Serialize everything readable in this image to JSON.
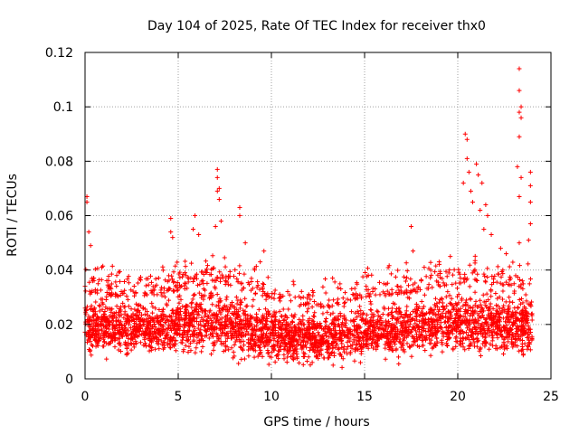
{
  "chart_data": {
    "type": "scatter",
    "title": "Day 104 of 2025, Rate Of TEC Index for receiver thx0",
    "xlabel": "GPS time / hours",
    "ylabel": "ROTI / TECUs",
    "xlim": [
      0,
      25
    ],
    "ylim": [
      0,
      0.12
    ],
    "xticks": [
      0,
      5,
      10,
      15,
      20,
      25
    ],
    "xtick_labels": [
      "0",
      "5",
      "10",
      "15",
      "20",
      "25"
    ],
    "yticks": [
      0,
      0.02,
      0.04,
      0.06,
      0.08,
      0.1,
      0.12
    ],
    "ytick_labels": [
      "0",
      "0.02",
      "0.04",
      "0.06",
      "0.08",
      "0.1",
      "0.12"
    ],
    "grid": true,
    "legend": "none",
    "marker": "+",
    "marker_color": "#ff0000",
    "x_extent": [
      0,
      24
    ],
    "baseline_band": [
      {
        "x": 0,
        "low": 0.008,
        "high": 0.032
      },
      {
        "x": 2,
        "low": 0.007,
        "high": 0.03
      },
      {
        "x": 4,
        "low": 0.007,
        "high": 0.031
      },
      {
        "x": 6,
        "low": 0.007,
        "high": 0.034
      },
      {
        "x": 7,
        "low": 0.006,
        "high": 0.036
      },
      {
        "x": 9,
        "low": 0.006,
        "high": 0.031
      },
      {
        "x": 11,
        "low": 0.004,
        "high": 0.027
      },
      {
        "x": 13,
        "low": 0.004,
        "high": 0.026
      },
      {
        "x": 15,
        "low": 0.005,
        "high": 0.03
      },
      {
        "x": 17,
        "low": 0.006,
        "high": 0.031
      },
      {
        "x": 19,
        "low": 0.007,
        "high": 0.034
      },
      {
        "x": 21,
        "low": 0.007,
        "high": 0.036
      },
      {
        "x": 23,
        "low": 0.006,
        "high": 0.034
      },
      {
        "x": 24,
        "low": 0.006,
        "high": 0.032
      }
    ],
    "notable_points": [
      {
        "x": 0.1,
        "y": 0.067
      },
      {
        "x": 0.1,
        "y": 0.065
      },
      {
        "x": 0.2,
        "y": 0.054
      },
      {
        "x": 0.3,
        "y": 0.049
      },
      {
        "x": 0.9,
        "y": 0.041
      },
      {
        "x": 1.7,
        "y": 0.038
      },
      {
        "x": 4.6,
        "y": 0.059
      },
      {
        "x": 4.6,
        "y": 0.054
      },
      {
        "x": 4.7,
        "y": 0.052
      },
      {
        "x": 5.9,
        "y": 0.06
      },
      {
        "x": 5.8,
        "y": 0.055
      },
      {
        "x": 6.1,
        "y": 0.053
      },
      {
        "x": 7.1,
        "y": 0.077
      },
      {
        "x": 7.1,
        "y": 0.074
      },
      {
        "x": 7.2,
        "y": 0.07
      },
      {
        "x": 7.1,
        "y": 0.069
      },
      {
        "x": 7.2,
        "y": 0.066
      },
      {
        "x": 7.3,
        "y": 0.058
      },
      {
        "x": 7.0,
        "y": 0.056
      },
      {
        "x": 8.3,
        "y": 0.063
      },
      {
        "x": 8.3,
        "y": 0.06
      },
      {
        "x": 8.6,
        "y": 0.05
      },
      {
        "x": 9.6,
        "y": 0.047
      },
      {
        "x": 9.4,
        "y": 0.043
      },
      {
        "x": 9.1,
        "y": 0.04
      },
      {
        "x": 15.2,
        "y": 0.038
      },
      {
        "x": 17.5,
        "y": 0.056
      },
      {
        "x": 17.6,
        "y": 0.047
      },
      {
        "x": 18.2,
        "y": 0.041
      },
      {
        "x": 19.6,
        "y": 0.045
      },
      {
        "x": 19.0,
        "y": 0.043
      },
      {
        "x": 20.4,
        "y": 0.09
      },
      {
        "x": 20.5,
        "y": 0.088
      },
      {
        "x": 20.5,
        "y": 0.081
      },
      {
        "x": 20.6,
        "y": 0.076
      },
      {
        "x": 20.3,
        "y": 0.072
      },
      {
        "x": 20.7,
        "y": 0.069
      },
      {
        "x": 21.0,
        "y": 0.079
      },
      {
        "x": 21.1,
        "y": 0.075
      },
      {
        "x": 21.3,
        "y": 0.072
      },
      {
        "x": 20.8,
        "y": 0.065
      },
      {
        "x": 21.2,
        "y": 0.062
      },
      {
        "x": 21.5,
        "y": 0.064
      },
      {
        "x": 21.6,
        "y": 0.06
      },
      {
        "x": 21.4,
        "y": 0.055
      },
      {
        "x": 21.8,
        "y": 0.053
      },
      {
        "x": 22.3,
        "y": 0.048
      },
      {
        "x": 22.6,
        "y": 0.046
      },
      {
        "x": 23.3,
        "y": 0.114
      },
      {
        "x": 23.3,
        "y": 0.106
      },
      {
        "x": 23.4,
        "y": 0.1
      },
      {
        "x": 23.3,
        "y": 0.098
      },
      {
        "x": 23.4,
        "y": 0.096
      },
      {
        "x": 23.3,
        "y": 0.089
      },
      {
        "x": 23.2,
        "y": 0.078
      },
      {
        "x": 23.4,
        "y": 0.074
      },
      {
        "x": 23.3,
        "y": 0.067
      },
      {
        "x": 23.9,
        "y": 0.076
      },
      {
        "x": 23.9,
        "y": 0.071
      },
      {
        "x": 23.9,
        "y": 0.065
      },
      {
        "x": 23.9,
        "y": 0.057
      },
      {
        "x": 23.8,
        "y": 0.051
      },
      {
        "x": 23.3,
        "y": 0.05
      }
    ]
  }
}
